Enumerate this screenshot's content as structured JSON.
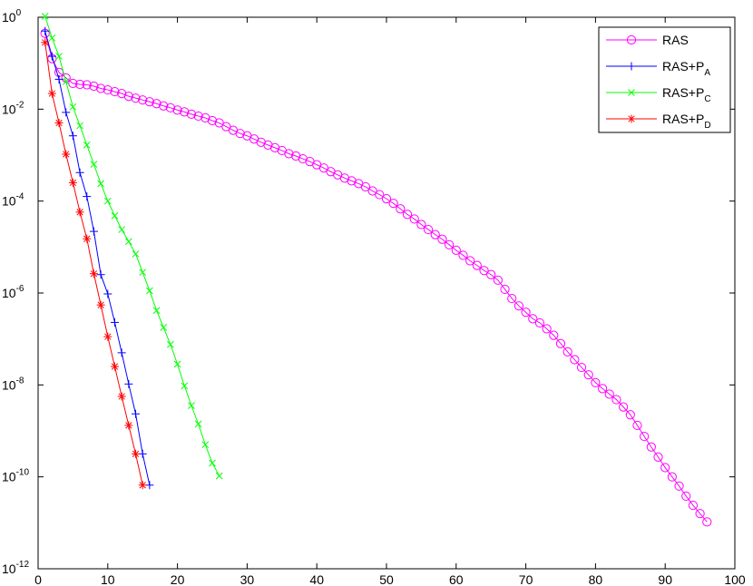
{
  "chart_data": {
    "type": "line",
    "title": "",
    "xlabel": "",
    "ylabel": "",
    "xlim": [
      0,
      100
    ],
    "ylim_exp": [
      -12,
      0
    ],
    "yscale": "log",
    "x_ticks": [
      0,
      10,
      20,
      30,
      40,
      50,
      60,
      70,
      80,
      90,
      100
    ],
    "y_ticks": [
      {
        "base": "10",
        "exp": "0",
        "value_exp": 0
      },
      {
        "base": "10",
        "exp": "-2",
        "value_exp": -2
      },
      {
        "base": "10",
        "exp": "-4",
        "value_exp": -4
      },
      {
        "base": "10",
        "exp": "-6",
        "value_exp": -6
      },
      {
        "base": "10",
        "exp": "-8",
        "value_exp": -8
      },
      {
        "base": "10",
        "exp": "-10",
        "value_exp": -10
      },
      {
        "base": "10",
        "exp": "-12",
        "value_exp": -12
      }
    ],
    "legend_position": "top-right",
    "series": [
      {
        "name": "RAS",
        "legend_base": "RAS",
        "legend_sub": "",
        "color": "#ff00ff",
        "marker": "circle",
        "x": [
          1,
          2,
          3,
          4,
          5,
          6,
          7,
          8,
          9,
          10,
          11,
          12,
          13,
          14,
          15,
          16,
          17,
          18,
          19,
          20,
          21,
          22,
          23,
          24,
          25,
          26,
          27,
          28,
          29,
          30,
          31,
          32,
          33,
          34,
          35,
          36,
          37,
          38,
          39,
          40,
          41,
          42,
          43,
          44,
          45,
          46,
          47,
          48,
          49,
          50,
          51,
          52,
          53,
          54,
          55,
          56,
          57,
          58,
          59,
          60,
          61,
          62,
          63,
          64,
          65,
          66,
          67,
          68,
          69,
          70,
          71,
          72,
          73,
          74,
          75,
          76,
          77,
          78,
          79,
          80,
          81,
          82,
          83,
          84,
          85,
          86,
          87,
          88,
          89,
          90,
          91,
          92,
          93,
          94,
          95,
          96
        ],
        "y_exp": [
          -0.35,
          -0.9,
          -1.2,
          -1.32,
          -1.44,
          -1.46,
          -1.47,
          -1.5,
          -1.55,
          -1.58,
          -1.62,
          -1.66,
          -1.72,
          -1.76,
          -1.8,
          -1.84,
          -1.88,
          -1.93,
          -1.97,
          -2.02,
          -2.06,
          -2.11,
          -2.15,
          -2.19,
          -2.25,
          -2.3,
          -2.38,
          -2.46,
          -2.53,
          -2.58,
          -2.65,
          -2.72,
          -2.78,
          -2.84,
          -2.9,
          -2.97,
          -3.02,
          -3.08,
          -3.14,
          -3.21,
          -3.28,
          -3.36,
          -3.43,
          -3.5,
          -3.56,
          -3.62,
          -3.69,
          -3.78,
          -3.86,
          -3.95,
          -4.05,
          -4.17,
          -4.29,
          -4.39,
          -4.51,
          -4.62,
          -4.73,
          -4.83,
          -4.95,
          -5.07,
          -5.18,
          -5.3,
          -5.4,
          -5.51,
          -5.6,
          -5.72,
          -5.92,
          -6.12,
          -6.28,
          -6.42,
          -6.56,
          -6.65,
          -6.78,
          -6.92,
          -7.1,
          -7.28,
          -7.45,
          -7.62,
          -7.78,
          -7.95,
          -8.08,
          -8.2,
          -8.32,
          -8.48,
          -8.65,
          -8.88,
          -9.12,
          -9.35,
          -9.57,
          -9.8,
          -10.0,
          -10.2,
          -10.42,
          -10.62,
          -10.8,
          -10.98
        ]
      },
      {
        "name": "RAS+P_A",
        "legend_base": "RAS+P",
        "legend_sub": "A",
        "color": "#0000ff",
        "marker": "plus",
        "x": [
          1,
          2,
          3,
          4,
          5,
          6,
          7,
          8,
          9,
          10,
          11,
          12,
          13,
          14,
          15,
          16
        ],
        "y_exp": [
          -0.3,
          -0.85,
          -1.35,
          -2.07,
          -2.58,
          -3.38,
          -3.9,
          -4.66,
          -5.6,
          -6.02,
          -6.64,
          -7.3,
          -7.98,
          -8.63,
          -9.5,
          -10.18
        ]
      },
      {
        "name": "RAS+P_C",
        "legend_base": "RAS+P",
        "legend_sub": "C",
        "color": "#00ff00",
        "marker": "x",
        "x": [
          1,
          2,
          3,
          4,
          5,
          6,
          7,
          8,
          9,
          10,
          11,
          12,
          13,
          14,
          15,
          16,
          17,
          18,
          19,
          20,
          21,
          22,
          23,
          24,
          25,
          26
        ],
        "y_exp": [
          0.02,
          -0.45,
          -0.85,
          -1.4,
          -1.95,
          -2.36,
          -2.78,
          -3.2,
          -3.62,
          -4.0,
          -4.32,
          -4.62,
          -4.88,
          -5.15,
          -5.55,
          -5.95,
          -6.38,
          -6.75,
          -7.12,
          -7.55,
          -8.02,
          -8.45,
          -8.85,
          -9.3,
          -9.7,
          -9.98
        ]
      },
      {
        "name": "RAS+P_D",
        "legend_base": "RAS+P",
        "legend_sub": "D",
        "color": "#ff0000",
        "marker": "asterisk",
        "x": [
          1,
          2,
          3,
          4,
          5,
          6,
          7,
          8,
          9,
          10,
          11,
          12,
          13,
          14,
          15
        ],
        "y_exp": [
          -0.55,
          -1.66,
          -2.3,
          -2.98,
          -3.6,
          -4.24,
          -4.82,
          -5.58,
          -6.26,
          -6.95,
          -7.6,
          -8.25,
          -8.88,
          -9.5,
          -10.18
        ]
      }
    ]
  }
}
